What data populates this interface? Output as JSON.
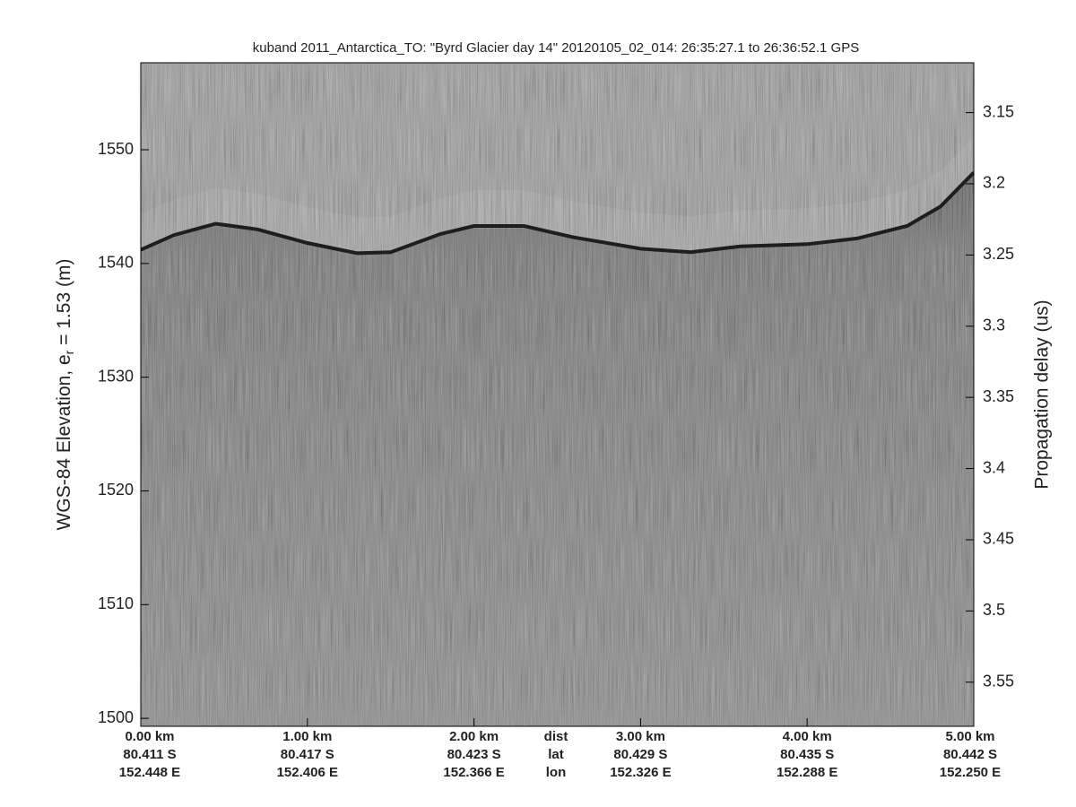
{
  "chart_data": {
    "type": "echogram",
    "title": "kuband 2011_Antarctica_TO: \"Byrd Glacier day 14\"  20120105_02_014: 26:35:27.1 to 26:36:52.1 GPS",
    "y_label": {
      "text": "WGS-84 Elevation, e",
      "subscript": "r",
      "suffix": " = 1.53 (m)"
    },
    "y2_label": "Propagation delay (us)",
    "xlim": [
      0,
      5.0
    ],
    "ylim": [
      1499.3,
      1557.65
    ],
    "y2lim": [
      3.581,
      3.115
    ],
    "xticks": [
      {
        "value": 0,
        "label": "0.00 km"
      },
      {
        "value": 1,
        "label": "1.00 km"
      },
      {
        "value": 2,
        "label": "2.00 km"
      },
      {
        "value": 3,
        "label": "3.00 km"
      },
      {
        "value": 4,
        "label": "4.00 km"
      },
      {
        "value": 5,
        "label": "5.00 km"
      }
    ],
    "lat_labels": [
      "80.411 S",
      "80.417 S",
      "80.423 S",
      "80.429 S",
      "80.435 S",
      "80.442 S"
    ],
    "lon_labels": [
      "152.448 E",
      "152.406 E",
      "152.366 E",
      "152.326 E",
      "152.288 E",
      "152.250 E"
    ],
    "row_names": [
      "dist",
      "lat",
      "lon"
    ],
    "yticks": [
      1500,
      1510,
      1520,
      1530,
      1540,
      1550
    ],
    "y2ticks": [
      3.15,
      3.2,
      3.25,
      3.3,
      3.35,
      3.4,
      3.45,
      3.5,
      3.55
    ],
    "x": [
      0,
      0.2,
      0.45,
      0.7,
      1.0,
      1.3,
      1.5,
      1.8,
      2.0,
      2.3,
      2.6,
      3.0,
      3.3,
      3.6,
      4.0,
      4.3,
      4.6,
      4.8,
      5.0
    ],
    "values": [
      1541.2,
      1542.5,
      1543.5,
      1543.0,
      1541.8,
      1540.9,
      1541.0,
      1542.6,
      1543.3,
      1543.3,
      1542.3,
      1541.3,
      1541.0,
      1541.5,
      1541.7,
      1542.2,
      1543.3,
      1545.0,
      1548.0
    ]
  }
}
